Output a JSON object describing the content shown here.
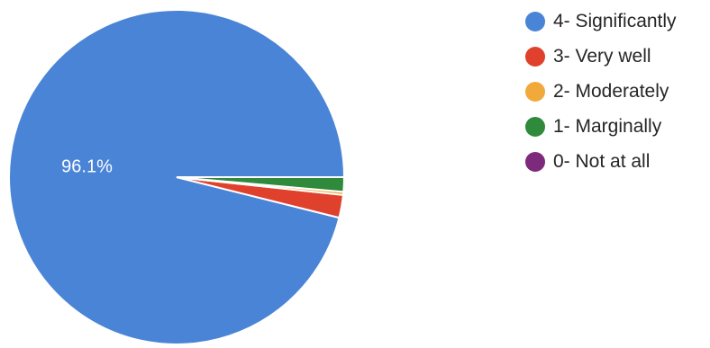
{
  "chart_data": {
    "type": "pie",
    "categories": [
      "4- Significantly",
      "3- Very well",
      "2- Moderately",
      "1- Marginally",
      "0- Not at all"
    ],
    "values": [
      96.1,
      2.2,
      0.3,
      1.4,
      0
    ],
    "colors": [
      "#4a84d6",
      "#e0412c",
      "#f2a93b",
      "#2f8a3c",
      "#7d2a7d"
    ],
    "data_labels": [
      "96.1%",
      "",
      "",
      "",
      ""
    ],
    "legend_position": "right"
  }
}
